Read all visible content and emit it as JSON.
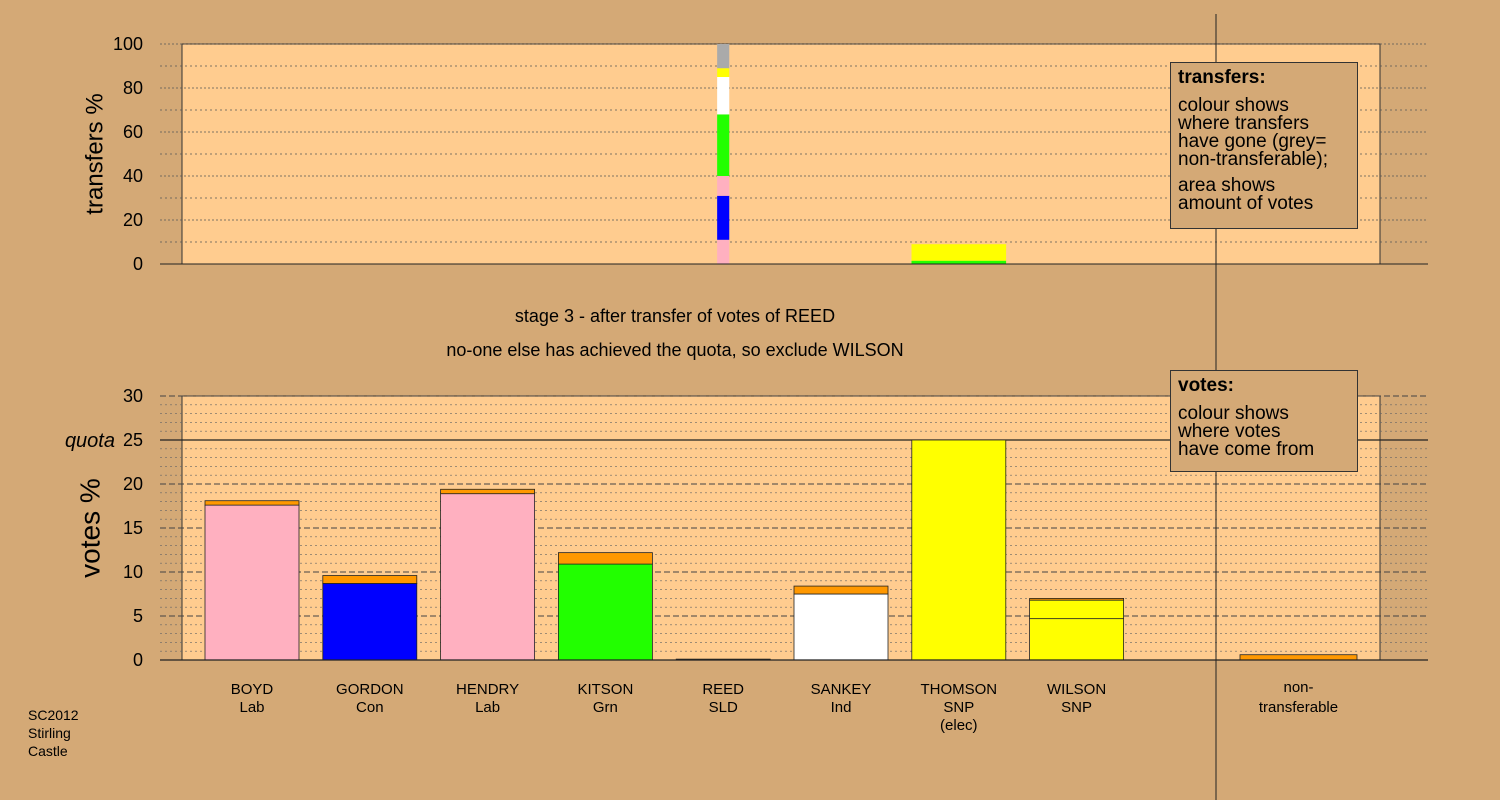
{
  "stage_text": {
    "line1": "stage 3 - after transfer of votes of REED",
    "line2": "no-one else has achieved the quota, so exclude WILSON"
  },
  "legend_transfers": {
    "title": "transfers:",
    "lines1": [
      "colour shows",
      "where transfers",
      "have gone (grey=",
      "non-transferable);"
    ],
    "lines2": [
      "area shows",
      "amount of votes"
    ]
  },
  "legend_votes": {
    "title": "votes:",
    "lines": [
      "colour shows",
      "where votes",
      "have come from"
    ]
  },
  "credit": [
    "SC2012",
    "Stirling",
    "Castle"
  ],
  "colors": {
    "background": "#d4a976",
    "plot": "#ffcc8f",
    "Lab": "#ffb0c0",
    "Con": "#0000ff",
    "Grn": "#22ff00",
    "SLD": "#ff9800",
    "Ind": "#ffffff",
    "SNP": "#ffff00",
    "nontransferable": "#aaaaaa",
    "stage3_transfer": "#ff9800"
  },
  "chart_data": [
    {
      "type": "bar",
      "name": "transfers",
      "ylabel": "transfers %",
      "ylim": [
        0,
        100
      ],
      "yticks": [
        0,
        20,
        40,
        60,
        80,
        100
      ],
      "grid": true,
      "columns": [
        {
          "candidate": "REED",
          "width_pct_votes": 0.55,
          "segments": [
            {
              "to": "BOYD",
              "color": "#ffb0c0",
              "from": 0,
              "to_pct": 11
            },
            {
              "to": "GORDON",
              "color": "#0000ff",
              "from": 11,
              "to_pct": 31
            },
            {
              "to": "HENDRY",
              "color": "#ffb0c0",
              "from": 31,
              "to_pct": 40
            },
            {
              "to": "KITSON",
              "color": "#22ff00",
              "from": 40,
              "to_pct": 68
            },
            {
              "to": "SANKEY",
              "color": "#ffffff",
              "from": 68,
              "to_pct": 85
            },
            {
              "to": "WILSON",
              "color": "#ffff00",
              "from": 85,
              "to_pct": 89
            },
            {
              "to": "non-transferable",
              "color": "#aaaaaa",
              "from": 89,
              "to_pct": 100
            }
          ]
        },
        {
          "candidate": "THOMSON",
          "width_pct_votes": 4.3,
          "segments": [
            {
              "to": "KITSON",
              "color": "#22ff00",
              "from": 0,
              "to_pct": 1.5
            },
            {
              "to": "WILSON",
              "color": "#ffff00",
              "from": 1.5,
              "to_pct": 9
            }
          ]
        }
      ]
    },
    {
      "type": "bar",
      "name": "votes",
      "ylabel": "votes %",
      "ylim": [
        0,
        30
      ],
      "yticks": [
        0,
        5,
        10,
        15,
        20,
        25,
        30
      ],
      "quota": 25,
      "quota_label": "quota",
      "grid": true,
      "categories": [
        {
          "name": "BOYD",
          "party": "Lab",
          "segments": [
            {
              "color": "#ffb0c0",
              "value": 17.6
            },
            {
              "color": "#ff9800",
              "value": 0.5
            }
          ]
        },
        {
          "name": "GORDON",
          "party": "Con",
          "segments": [
            {
              "color": "#0000ff",
              "value": 8.7
            },
            {
              "color": "#ff9800",
              "value": 0.9
            }
          ]
        },
        {
          "name": "HENDRY",
          "party": "Lab",
          "segments": [
            {
              "color": "#ffb0c0",
              "value": 18.9
            },
            {
              "color": "#ff9800",
              "value": 0.5
            }
          ]
        },
        {
          "name": "KITSON",
          "party": "Grn",
          "segments": [
            {
              "color": "#22ff00",
              "value": 10.9
            },
            {
              "color": "#ff9800",
              "value": 1.3
            }
          ]
        },
        {
          "name": "REED",
          "party": "SLD",
          "segments": [
            {
              "color": "#ff9800",
              "value": 0.1
            }
          ]
        },
        {
          "name": "SANKEY",
          "party": "Ind",
          "segments": [
            {
              "color": "#ffffff",
              "value": 7.5
            },
            {
              "color": "#ff9800",
              "value": 0.9
            }
          ]
        },
        {
          "name": "THOMSON",
          "party": "SNP",
          "note": "(elec)",
          "segments": [
            {
              "color": "#ffff00",
              "value": 25.0
            }
          ]
        },
        {
          "name": "WILSON",
          "party": "SNP",
          "segments": [
            {
              "color": "#ffff00",
              "value": 4.7
            },
            {
              "color": "#ffff00",
              "value": 2.1
            },
            {
              "color": "#ff9800",
              "value": 0.2
            }
          ]
        }
      ],
      "nontransferable": {
        "label1": "non-",
        "label2": "transferable",
        "segments": [
          {
            "color": "#ff9800",
            "value": 0.6
          }
        ]
      }
    }
  ]
}
